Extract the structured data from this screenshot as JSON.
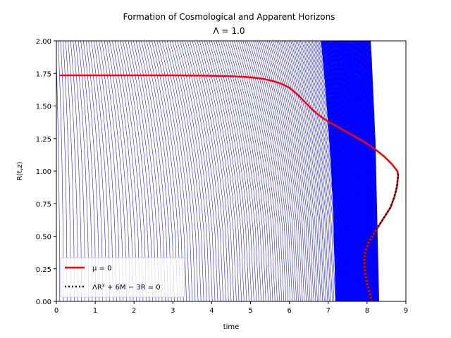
{
  "chart_data": {
    "type": "line",
    "title": "Formation of Cosmological and Apparent Horizons",
    "subtitle": "Λ = 1.0",
    "xlabel": "time",
    "ylabel": "R(t,z)",
    "xlim": [
      0,
      9
    ],
    "ylim": [
      0,
      2
    ],
    "x_ticks": [
      "0",
      "1",
      "2",
      "3",
      "4",
      "5",
      "6",
      "7",
      "8",
      "9"
    ],
    "y_ticks": [
      "0.00",
      "0.25",
      "0.50",
      "0.75",
      "1.00",
      "1.25",
      "1.50",
      "1.75",
      "2.00"
    ],
    "grid": false,
    "legend_position": "lower-left",
    "background_curves": {
      "description_color": "#0000ff",
      "count": 160,
      "shape": "R(t) for shells falling from large R toward a focus near t≈8.2, R≈0"
    },
    "series": [
      {
        "name": "μ = 0",
        "color": "#ff0000",
        "style": "solid",
        "x": [
          0.1,
          1.0,
          2.0,
          3.0,
          3.5,
          4.0,
          4.5,
          5.0,
          5.3,
          5.6,
          5.8,
          6.0,
          6.2,
          6.4,
          6.6,
          6.8,
          7.0,
          7.3,
          7.6,
          7.9,
          8.2,
          8.45,
          8.65,
          8.78,
          8.8,
          8.77,
          8.7,
          8.6,
          8.45,
          8.3,
          8.15,
          8.02,
          7.95,
          7.93,
          7.95,
          8.0,
          8.07,
          8.12
        ],
        "y": [
          1.735,
          1.735,
          1.735,
          1.735,
          1.734,
          1.732,
          1.728,
          1.72,
          1.71,
          1.69,
          1.67,
          1.64,
          1.59,
          1.53,
          1.47,
          1.42,
          1.38,
          1.33,
          1.28,
          1.23,
          1.17,
          1.11,
          1.05,
          1.0,
          0.96,
          0.88,
          0.8,
          0.72,
          0.65,
          0.58,
          0.51,
          0.44,
          0.38,
          0.3,
          0.22,
          0.14,
          0.06,
          0.0
        ]
      },
      {
        "name": "ΛR³ + 6M − 3R = 0",
        "color": "#000000",
        "style": "dotted",
        "x": [
          8.8,
          8.77,
          8.7,
          8.6,
          8.45,
          8.3,
          8.15,
          8.02,
          7.95,
          7.93,
          7.95,
          8.0,
          8.07,
          8.12
        ],
        "y": [
          0.98,
          0.88,
          0.8,
          0.72,
          0.65,
          0.58,
          0.51,
          0.44,
          0.38,
          0.3,
          0.22,
          0.14,
          0.06,
          0.0
        ]
      }
    ]
  }
}
